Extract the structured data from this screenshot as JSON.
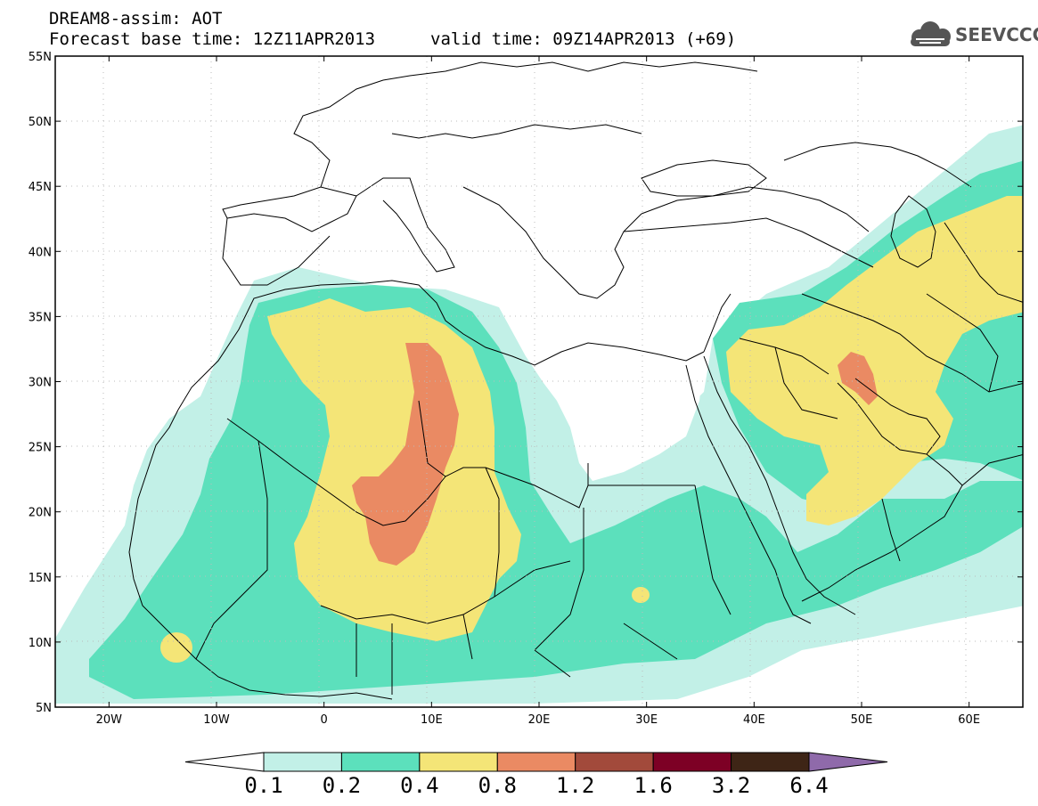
{
  "header": {
    "title": "DREAM8-assim: AOT",
    "base_time": "Forecast base time: 12Z11APR2013",
    "valid_time": "valid time: 09Z14APR2013 (+69)",
    "logo_text": "SEEVCCC"
  },
  "map": {
    "lon_range": [
      -25,
      65
    ],
    "lat_range": [
      5,
      55
    ],
    "lon_ticks": [
      "20W",
      "10W",
      "0",
      "10E",
      "20E",
      "30E",
      "40E",
      "50E",
      "60E"
    ],
    "lat_ticks": [
      "55N",
      "50N",
      "45N",
      "40N",
      "35N",
      "30N",
      "25N",
      "20N",
      "15N",
      "10N",
      "5N"
    ],
    "field": "AOT (aerosol optical thickness)"
  },
  "colorbar": {
    "levels": [
      "0.1",
      "0.2",
      "0.4",
      "0.8",
      "1.2",
      "1.6",
      "3.2",
      "6.4"
    ],
    "colors": [
      "#ffffff",
      "#c2f0e7",
      "#5ce0bc",
      "#f4e577",
      "#ea8a63",
      "#a24a3b",
      "#7d0025",
      "#3e2516",
      "#8f6aaa"
    ]
  }
}
